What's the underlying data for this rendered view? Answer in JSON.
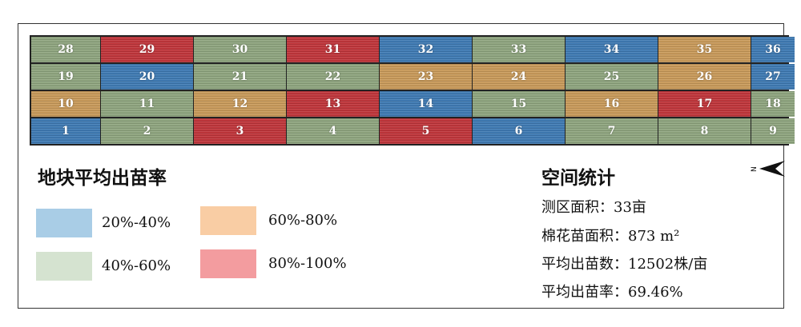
{
  "map": {
    "plots": [
      [
        {
          "id": "28",
          "class": "green"
        },
        {
          "id": "29",
          "class": "red"
        },
        {
          "id": "30",
          "class": "green"
        },
        {
          "id": "31",
          "class": "red"
        },
        {
          "id": "32",
          "class": "blue"
        },
        {
          "id": "33",
          "class": "green"
        },
        {
          "id": "34",
          "class": "blue"
        },
        {
          "id": "35",
          "class": "orange"
        },
        {
          "id": "36",
          "class": "blue"
        }
      ],
      [
        {
          "id": "19",
          "class": "green"
        },
        {
          "id": "20",
          "class": "blue"
        },
        {
          "id": "21",
          "class": "green"
        },
        {
          "id": "22",
          "class": "green"
        },
        {
          "id": "23",
          "class": "orange"
        },
        {
          "id": "24",
          "class": "orange"
        },
        {
          "id": "25",
          "class": "green"
        },
        {
          "id": "26",
          "class": "orange"
        },
        {
          "id": "27",
          "class": "blue"
        }
      ],
      [
        {
          "id": "10",
          "class": "orange"
        },
        {
          "id": "11",
          "class": "green"
        },
        {
          "id": "12",
          "class": "orange"
        },
        {
          "id": "13",
          "class": "red"
        },
        {
          "id": "14",
          "class": "blue"
        },
        {
          "id": "15",
          "class": "green"
        },
        {
          "id": "16",
          "class": "orange"
        },
        {
          "id": "17",
          "class": "red"
        },
        {
          "id": "18",
          "class": "green"
        }
      ],
      [
        {
          "id": "1",
          "class": "blue"
        },
        {
          "id": "2",
          "class": "green"
        },
        {
          "id": "3",
          "class": "red"
        },
        {
          "id": "4",
          "class": "green"
        },
        {
          "id": "5",
          "class": "red"
        },
        {
          "id": "6",
          "class": "blue"
        },
        {
          "id": "7",
          "class": "green"
        },
        {
          "id": "8",
          "class": "green"
        },
        {
          "id": "9",
          "class": "green"
        }
      ]
    ],
    "colors": {
      "blue": "#3f7ab3",
      "green": "#8fa57f",
      "orange": "#c89a5a",
      "red": "#c0363b"
    }
  },
  "legend": {
    "title": "地块平均出苗率",
    "items": [
      {
        "label": "20%-40%",
        "color": "#a9cde6"
      },
      {
        "label": "60%-80%",
        "color": "#f9cda4"
      },
      {
        "label": "40%-60%",
        "color": "#d5e3d0"
      },
      {
        "label": "80%-100%",
        "color": "#f39c9f"
      }
    ]
  },
  "stats": {
    "title": "空间统计",
    "lines": [
      "测区面积：33亩",
      "棉花苗面积：873 m²",
      "平均出苗数：12502株/亩",
      "平均出苗率：69.46%"
    ]
  },
  "north_arrow": {
    "letter": "N",
    "icon": "north-arrow-icon"
  }
}
